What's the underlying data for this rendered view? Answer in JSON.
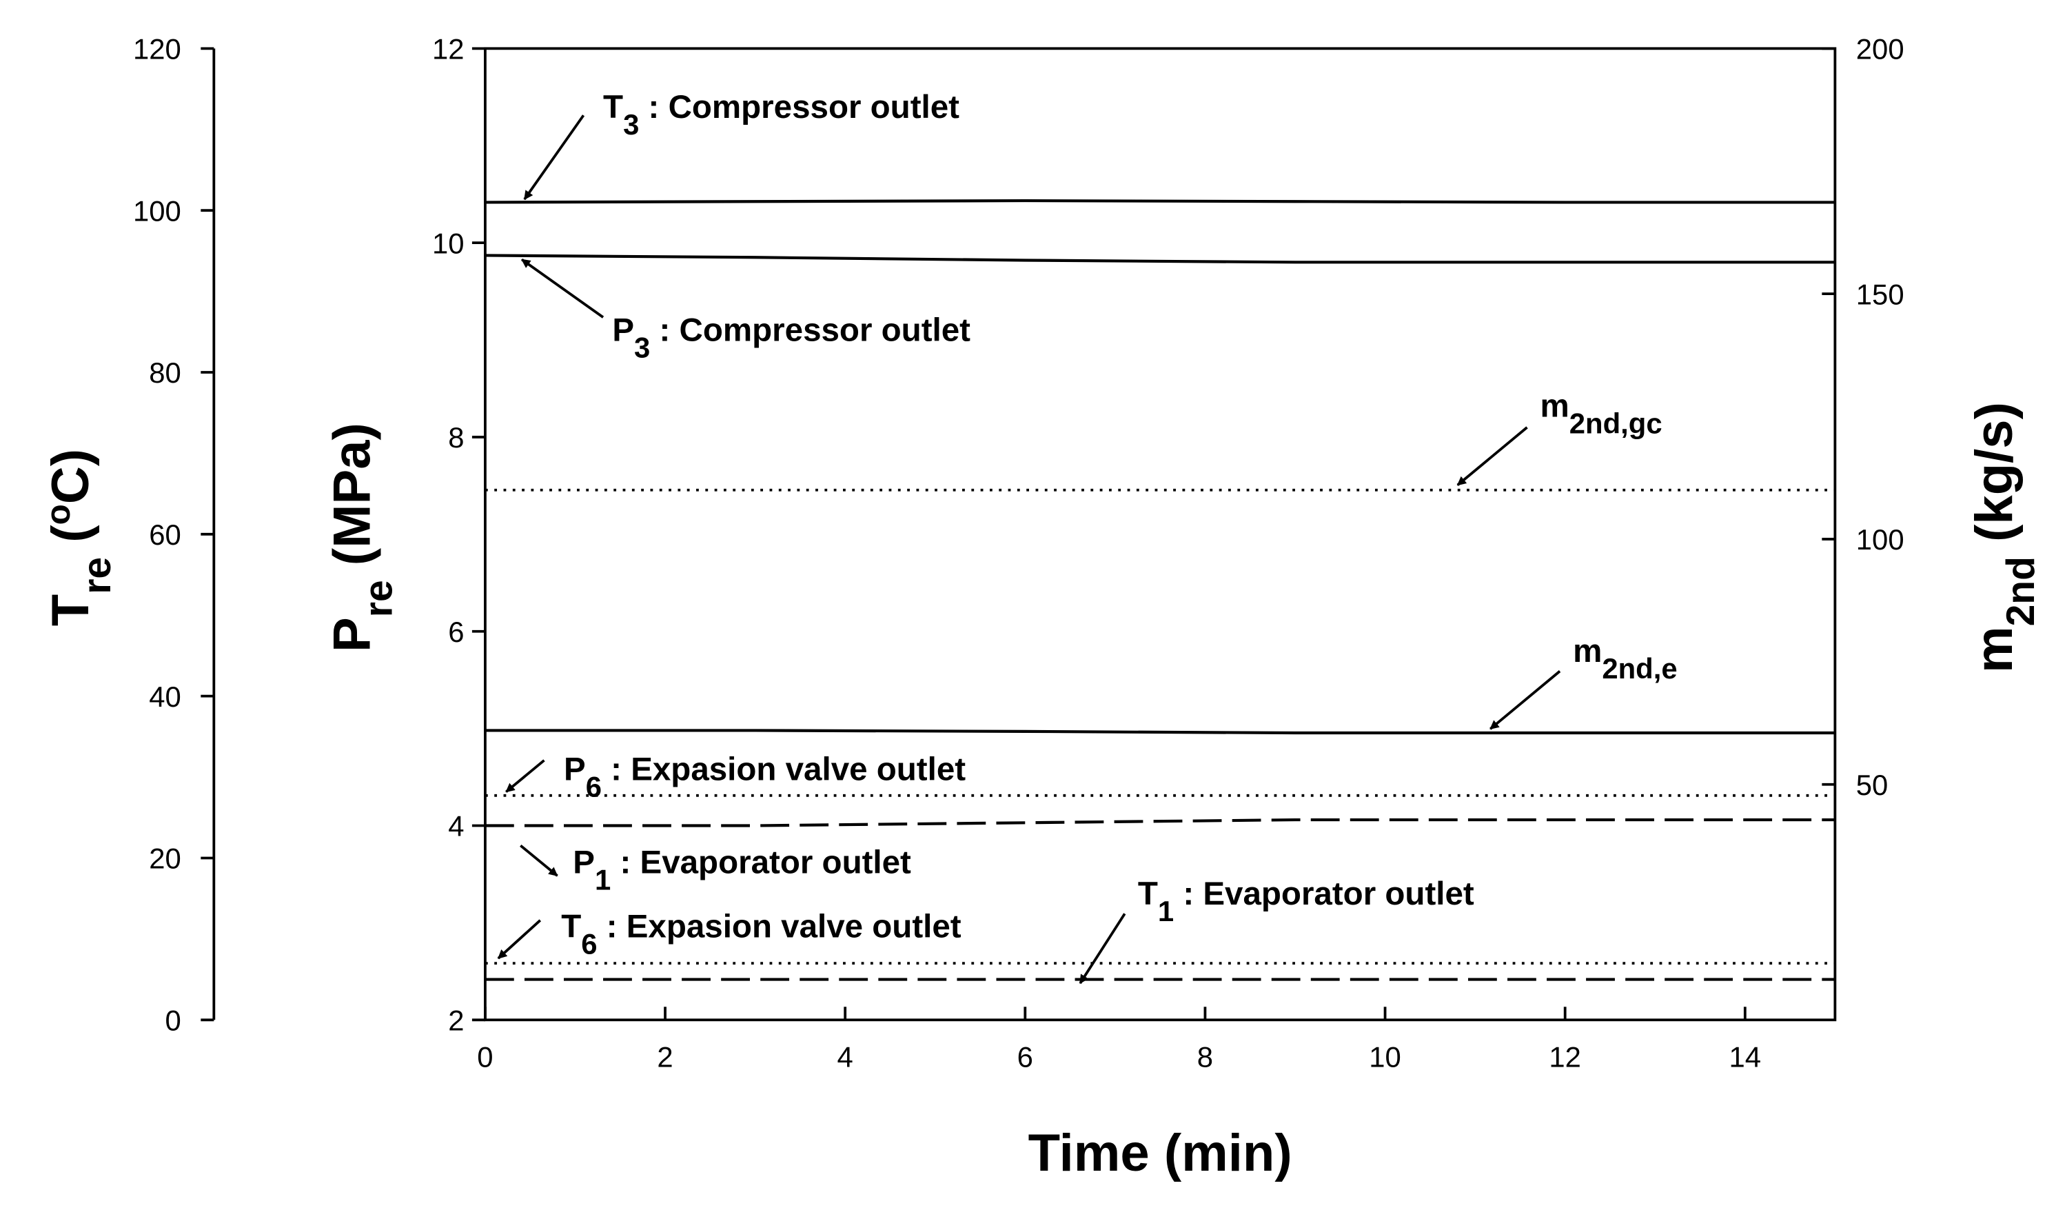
{
  "chart_data": {
    "type": "line",
    "x_label": "Time (min)",
    "y_label": [
      {
        "text": "P"
      },
      {
        "text": "re",
        "style": "sub"
      },
      {
        "text": " (MPa)"
      }
    ],
    "y2_label": [
      {
        "text": "m"
      },
      {
        "text": "2nd",
        "style": "sub"
      },
      {
        "text": " (kg/s)"
      }
    ],
    "y3_label": [
      {
        "text": "T"
      },
      {
        "text": "re",
        "style": "sub"
      },
      {
        "text": " ("
      },
      {
        "text": "o",
        "style": "sup"
      },
      {
        "text": "C)"
      }
    ],
    "x": [
      0,
      3,
      6,
      9,
      12,
      15
    ],
    "xlim": [
      0,
      15
    ],
    "xticks": [
      0,
      2,
      4,
      6,
      8,
      10,
      12,
      14
    ],
    "ylim": [
      2,
      12
    ],
    "yticks": [
      2,
      4,
      6,
      8,
      10,
      12
    ],
    "y2lim": [
      2,
      200
    ],
    "y2ticks": [
      50,
      100,
      150,
      200
    ],
    "y3lim": [
      0,
      120
    ],
    "y3ticks": [
      0,
      20,
      40,
      60,
      80,
      100,
      120
    ],
    "series": [
      {
        "label": [
          {
            "text": "T"
          },
          {
            "text": "3",
            "style": "sub"
          },
          {
            "text": " : Compressor outlet"
          }
        ],
        "axis": "y3",
        "style": "solid",
        "color": "#000000",
        "values": [
          101.0,
          101.1,
          101.2,
          101.1,
          101.0,
          101.0
        ]
      },
      {
        "label": [
          {
            "text": "P"
          },
          {
            "text": "3",
            "style": "sub"
          },
          {
            "text": " : Compressor outlet"
          }
        ],
        "axis": "y",
        "style": "solid",
        "color": "#000000",
        "values": [
          9.87,
          9.85,
          9.82,
          9.8,
          9.8,
          9.8
        ]
      },
      {
        "label": [
          {
            "text": "m"
          },
          {
            "text": "2nd,gc",
            "style": "sub"
          }
        ],
        "axis": "y2",
        "style": "dotted",
        "color": "#000000",
        "values": [
          110,
          110,
          110,
          110,
          110,
          110
        ]
      },
      {
        "label": [
          {
            "text": "m"
          },
          {
            "text": "2nd,e",
            "style": "sub"
          }
        ],
        "axis": "y2",
        "style": "solid",
        "color": "#000000",
        "values": [
          61,
          61,
          60.8,
          60.5,
          60.5,
          60.5
        ]
      },
      {
        "label": [
          {
            "text": "P"
          },
          {
            "text": "6",
            "style": "sub"
          },
          {
            "text": " : Expasion valve outlet"
          }
        ],
        "axis": "y",
        "style": "dotted",
        "color": "#000000",
        "values": [
          4.31,
          4.31,
          4.31,
          4.31,
          4.31,
          4.31
        ]
      },
      {
        "label": [
          {
            "text": "P"
          },
          {
            "text": "1",
            "style": "sub"
          },
          {
            "text": " : Evaporator outlet"
          }
        ],
        "axis": "y",
        "style": "dashed",
        "color": "#000000",
        "values": [
          4.0,
          4.0,
          4.03,
          4.06,
          4.06,
          4.06
        ]
      },
      {
        "label": [
          {
            "text": "T"
          },
          {
            "text": "6",
            "style": "sub"
          },
          {
            "text": " : Expasion valve outlet"
          }
        ],
        "axis": "y3",
        "style": "dotted",
        "color": "#000000",
        "values": [
          7,
          7,
          7,
          7,
          7,
          7
        ]
      },
      {
        "label": [
          {
            "text": "T"
          },
          {
            "text": "1",
            "style": "sub"
          },
          {
            "text": " : Evaporator outlet"
          }
        ],
        "axis": "y3",
        "style": "dashed",
        "color": "#000000",
        "values": [
          5,
          5,
          5,
          5,
          5,
          5
        ]
      }
    ]
  }
}
